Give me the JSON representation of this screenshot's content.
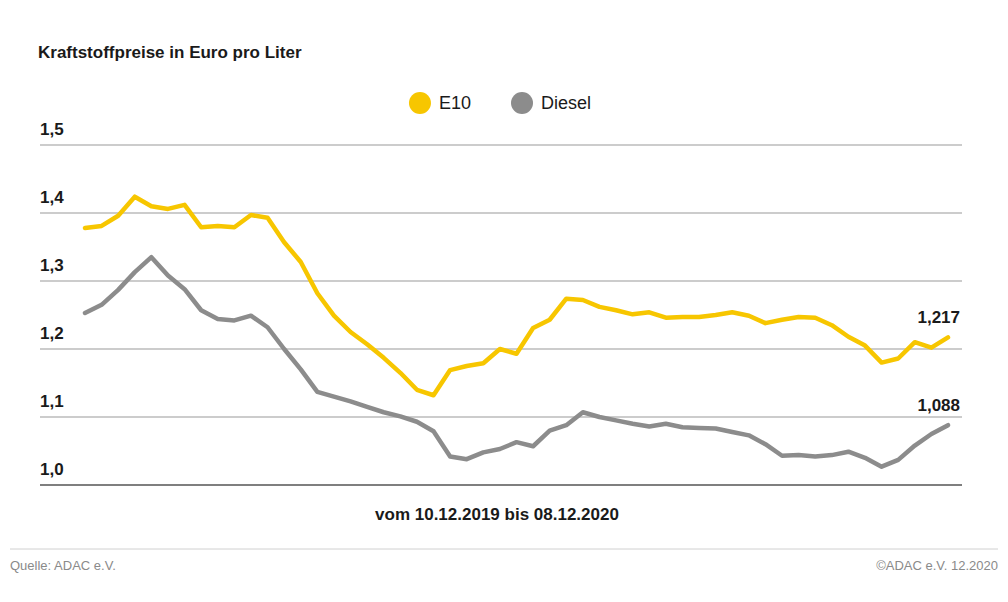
{
  "chart_data": {
    "type": "line",
    "title": "Kraftstoffpreise in Euro pro Liter",
    "subtitle": "vom 10.12.2019 bis 08.12.2020",
    "source": "Quelle: ADAC e.V.",
    "copyright": "©ADAC e.V. 12.2020",
    "categories": [
      null,
      null,
      null,
      null,
      null,
      null,
      null,
      null,
      null,
      null,
      null,
      null,
      null,
      null,
      null,
      null,
      null,
      null,
      null,
      null,
      null,
      null,
      null,
      null,
      null,
      null,
      null,
      null,
      null,
      null,
      null,
      null,
      null,
      null,
      null,
      null,
      null,
      null,
      null,
      null,
      null,
      null,
      null,
      null,
      null,
      null,
      null,
      null,
      null,
      null,
      null,
      null,
      null
    ],
    "series": [
      {
        "name": "E10",
        "color": "#f7c600",
        "values": [
          1.378,
          1.381,
          1.396,
          1.424,
          1.41,
          1.406,
          1.412,
          1.379,
          1.381,
          1.379,
          1.397,
          1.393,
          1.357,
          1.328,
          1.282,
          1.249,
          1.225,
          1.207,
          1.187,
          1.165,
          1.14,
          1.132,
          1.169,
          1.175,
          1.179,
          1.2,
          1.193,
          1.231,
          1.243,
          1.274,
          1.272,
          1.262,
          1.257,
          1.251,
          1.254,
          1.246,
          1.247,
          1.247,
          1.25,
          1.254,
          1.249,
          1.238,
          1.243,
          1.247,
          1.246,
          1.235,
          1.218,
          1.205,
          1.18,
          1.186,
          1.21,
          1.202,
          1.217
        ],
        "value_labels": [
          null,
          null,
          null,
          null,
          null,
          null,
          null,
          null,
          null,
          null,
          null,
          null,
          null,
          null,
          null,
          null,
          null,
          null,
          null,
          null,
          null,
          null,
          null,
          null,
          null,
          null,
          null,
          null,
          null,
          null,
          null,
          null,
          null,
          null,
          null,
          null,
          null,
          null,
          null,
          null,
          null,
          null,
          null,
          null,
          null,
          null,
          null,
          null,
          null,
          null,
          null,
          null,
          "1,217"
        ]
      },
      {
        "name": "Diesel",
        "color": "#8c8c8c",
        "values": [
          1.253,
          1.265,
          1.287,
          1.313,
          1.335,
          1.308,
          1.288,
          1.257,
          1.244,
          1.242,
          1.249,
          1.232,
          1.2,
          1.17,
          1.137,
          1.13,
          1.123,
          1.115,
          1.107,
          1.101,
          1.093,
          1.079,
          1.042,
          1.038,
          1.048,
          1.053,
          1.063,
          1.057,
          1.08,
          1.088,
          1.107,
          1.1,
          1.095,
          1.09,
          1.086,
          1.09,
          1.085,
          1.084,
          1.083,
          1.078,
          1.073,
          1.06,
          1.043,
          1.044,
          1.042,
          1.044,
          1.049,
          1.04,
          1.027,
          1.037,
          1.058,
          1.075,
          1.088
        ],
        "value_labels": [
          null,
          null,
          null,
          null,
          null,
          null,
          null,
          null,
          null,
          null,
          null,
          null,
          null,
          null,
          null,
          null,
          null,
          null,
          null,
          null,
          null,
          null,
          null,
          null,
          null,
          null,
          null,
          null,
          null,
          null,
          null,
          null,
          null,
          null,
          null,
          null,
          null,
          null,
          null,
          null,
          null,
          null,
          null,
          null,
          null,
          null,
          null,
          null,
          null,
          null,
          null,
          null,
          "1,088"
        ]
      }
    ],
    "ylim": [
      1.0,
      1.5
    ],
    "yticks": [
      {
        "value": 1.0,
        "label": "1,0"
      },
      {
        "value": 1.1,
        "label": "1,1"
      },
      {
        "value": 1.2,
        "label": "1,2"
      },
      {
        "value": 1.3,
        "label": "1,3"
      },
      {
        "value": 1.4,
        "label": "1,4"
      },
      {
        "value": 1.5,
        "label": "1,5"
      }
    ],
    "grid": true,
    "legend": "top",
    "data_labels": true
  }
}
